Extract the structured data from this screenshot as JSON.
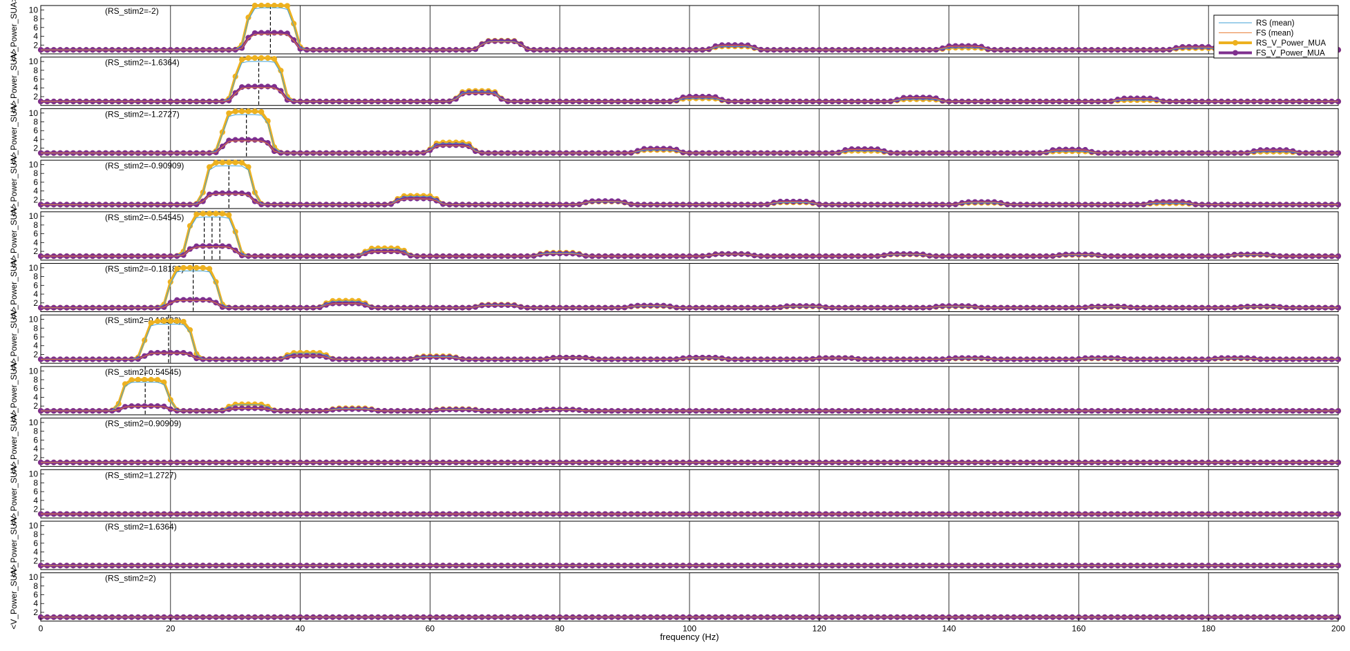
{
  "chart_data": {
    "type": "line",
    "xlabel": "frequency (Hz)",
    "ylabel": "<V_Power_SUA>",
    "xlim": [
      0,
      200
    ],
    "ylim": [
      0,
      11
    ],
    "x_ticks": [
      "0",
      "20",
      "40",
      "60",
      "80",
      "100",
      "120",
      "140",
      "160",
      "180",
      "200"
    ],
    "y_ticks": [
      "2",
      "4",
      "6",
      "8",
      "10"
    ],
    "grid": "vertical lines at x ticks",
    "legend_position": "top-right",
    "legend": [
      {
        "label": "RS (mean)",
        "color": "#3f9fd6",
        "style": "thin line"
      },
      {
        "label": "FS (mean)",
        "color": "#e8803a",
        "style": "thin line"
      },
      {
        "label": "RS_V_Power_MUA",
        "color": "#edb120",
        "style": "thick line with circle markers"
      },
      {
        "label": "FS_V_Power_MUA",
        "color": "#7e2f8e",
        "style": "thick line with circle markers"
      }
    ],
    "x_step": 1,
    "baseline": 0.9,
    "panels": [
      {
        "label": "(RS_stim2=-2)",
        "fundamental_hz": 35.4,
        "dashed_x": [
          35.4
        ],
        "bumps": [
          {
            "center": 35.4,
            "width": 5.0,
            "rs": 11.3,
            "fs": 4.8
          },
          {
            "center": 71.0,
            "width": 4.0,
            "rs": 3.0,
            "fs": 2.9
          },
          {
            "center": 106.8,
            "width": 4.0,
            "rs": 1.7,
            "fs": 2.0
          },
          {
            "center": 142.3,
            "width": 4.0,
            "rs": 1.4,
            "fs": 1.8
          },
          {
            "center": 178.0,
            "width": 4.0,
            "rs": 1.3,
            "fs": 1.6
          }
        ]
      },
      {
        "label": "(RS_stim2=-1.6364)",
        "fundamental_hz": 33.6,
        "dashed_x": [
          33.6
        ],
        "bumps": [
          {
            "center": 33.6,
            "width": 5.0,
            "rs": 10.8,
            "fs": 4.3
          },
          {
            "center": 67.5,
            "width": 4.0,
            "rs": 3.3,
            "fs": 2.9
          },
          {
            "center": 101.6,
            "width": 4.0,
            "rs": 1.6,
            "fs": 2.0
          },
          {
            "center": 135.3,
            "width": 4.0,
            "rs": 1.4,
            "fs": 1.8
          },
          {
            "center": 169.0,
            "width": 4.0,
            "rs": 1.2,
            "fs": 1.6
          }
        ]
      },
      {
        "label": "(RS_stim2=-1.2727)",
        "fundamental_hz": 31.7,
        "dashed_x": [
          31.7
        ],
        "bumps": [
          {
            "center": 31.7,
            "width": 5.0,
            "rs": 10.4,
            "fs": 3.9
          },
          {
            "center": 63.4,
            "width": 4.0,
            "rs": 3.3,
            "fs": 2.7
          },
          {
            "center": 95.2,
            "width": 4.0,
            "rs": 1.6,
            "fs": 1.9
          },
          {
            "center": 126.8,
            "width": 4.0,
            "rs": 1.4,
            "fs": 1.8
          },
          {
            "center": 158.6,
            "width": 4.0,
            "rs": 1.3,
            "fs": 1.7
          },
          {
            "center": 190.0,
            "width": 4.0,
            "rs": 1.2,
            "fs": 1.6
          }
        ]
      },
      {
        "label": "(RS_stim2=-0.90909)",
        "fundamental_hz": 29.0,
        "dashed_x": [
          29.0
        ],
        "bumps": [
          {
            "center": 29.0,
            "width": 5.0,
            "rs": 10.5,
            "fs": 3.5
          },
          {
            "center": 58.0,
            "width": 4.0,
            "rs": 2.9,
            "fs": 2.3
          },
          {
            "center": 87.0,
            "width": 4.0,
            "rs": 1.6,
            "fs": 1.7
          },
          {
            "center": 116.0,
            "width": 4.0,
            "rs": 1.4,
            "fs": 1.6
          },
          {
            "center": 145.0,
            "width": 4.0,
            "rs": 1.3,
            "fs": 1.5
          },
          {
            "center": 174.0,
            "width": 4.0,
            "rs": 1.2,
            "fs": 1.5
          }
        ]
      },
      {
        "label": "(RS_stim2=-0.54545)",
        "fundamental_hz": 26.4,
        "dashed_x": [
          25.2,
          26.4,
          27.6
        ],
        "bumps": [
          {
            "center": 26.4,
            "width": 5.0,
            "rs": 10.6,
            "fs": 3.2
          },
          {
            "center": 53.1,
            "width": 4.0,
            "rs": 2.7,
            "fs": 2.0
          },
          {
            "center": 80.0,
            "width": 4.0,
            "rs": 1.7,
            "fs": 1.5
          },
          {
            "center": 106.5,
            "width": 4.0,
            "rs": 1.4,
            "fs": 1.4
          },
          {
            "center": 133.3,
            "width": 4.0,
            "rs": 1.3,
            "fs": 1.4
          },
          {
            "center": 160.0,
            "width": 4.0,
            "rs": 1.2,
            "fs": 1.3
          },
          {
            "center": 186.6,
            "width": 4.0,
            "rs": 1.2,
            "fs": 1.3
          }
        ]
      },
      {
        "label": "(RS_stim2=-0.18182)",
        "fundamental_hz": 23.5,
        "dashed_x": [
          23.5
        ],
        "bumps": [
          {
            "center": 23.5,
            "width": 5.0,
            "rs": 10.0,
            "fs": 2.7
          },
          {
            "center": 47.0,
            "width": 4.0,
            "rs": 2.5,
            "fs": 1.9
          },
          {
            "center": 70.5,
            "width": 4.0,
            "rs": 1.6,
            "fs": 1.5
          },
          {
            "center": 94.0,
            "width": 4.0,
            "rs": 1.3,
            "fs": 1.4
          },
          {
            "center": 117.5,
            "width": 4.0,
            "rs": 1.2,
            "fs": 1.3
          },
          {
            "center": 141.0,
            "width": 4.0,
            "rs": 1.2,
            "fs": 1.3
          },
          {
            "center": 164.5,
            "width": 4.0,
            "rs": 1.1,
            "fs": 1.2
          },
          {
            "center": 188.0,
            "width": 4.0,
            "rs": 1.1,
            "fs": 1.2
          }
        ]
      },
      {
        "label": "(RS_stim2=0.18182)",
        "fundamental_hz": 19.7,
        "dashed_x": [
          19.7
        ],
        "bumps": [
          {
            "center": 19.7,
            "width": 5.0,
            "rs": 9.6,
            "fs": 2.4
          },
          {
            "center": 41.0,
            "width": 4.0,
            "rs": 2.4,
            "fs": 1.7
          },
          {
            "center": 61.0,
            "width": 4.0,
            "rs": 1.6,
            "fs": 1.4
          },
          {
            "center": 81.5,
            "width": 4.0,
            "rs": 1.3,
            "fs": 1.3
          },
          {
            "center": 102.0,
            "width": 4.0,
            "rs": 1.2,
            "fs": 1.3
          },
          {
            "center": 122.5,
            "width": 4.0,
            "rs": 1.2,
            "fs": 1.2
          },
          {
            "center": 143.0,
            "width": 4.0,
            "rs": 1.1,
            "fs": 1.2
          },
          {
            "center": 163.5,
            "width": 4.0,
            "rs": 1.1,
            "fs": 1.2
          },
          {
            "center": 184.0,
            "width": 4.0,
            "rs": 1.1,
            "fs": 1.2
          }
        ]
      },
      {
        "label": "(RS_stim2=0.54545)",
        "fundamental_hz": 16.1,
        "dashed_x": [
          16.1
        ],
        "bumps": [
          {
            "center": 16.1,
            "width": 5.0,
            "rs": 8.0,
            "fs": 2.0
          },
          {
            "center": 32.0,
            "width": 4.0,
            "rs": 2.4,
            "fs": 1.5
          },
          {
            "center": 48.0,
            "width": 4.0,
            "rs": 1.5,
            "fs": 1.3
          },
          {
            "center": 64.0,
            "width": 4.0,
            "rs": 1.3,
            "fs": 1.2
          },
          {
            "center": 80.0,
            "width": 4.0,
            "rs": 1.2,
            "fs": 1.2
          }
        ]
      },
      {
        "label": "(RS_stim2=0.90909)",
        "fundamental_hz": null,
        "dashed_x": [],
        "bumps": []
      },
      {
        "label": "(RS_stim2=1.2727)",
        "fundamental_hz": null,
        "dashed_x": [],
        "bumps": []
      },
      {
        "label": "(RS_stim2=1.6364)",
        "fundamental_hz": null,
        "dashed_x": [],
        "bumps": []
      },
      {
        "label": "(RS_stim2=2)",
        "fundamental_hz": null,
        "dashed_x": [],
        "bumps": []
      }
    ]
  },
  "colors": {
    "rs_mean": "#3f9fd6",
    "fs_mean": "#e8803a",
    "rs_mua": "#edb120",
    "fs_mua": "#7e2f8e",
    "axis": "#000000",
    "grid": "#000000"
  }
}
